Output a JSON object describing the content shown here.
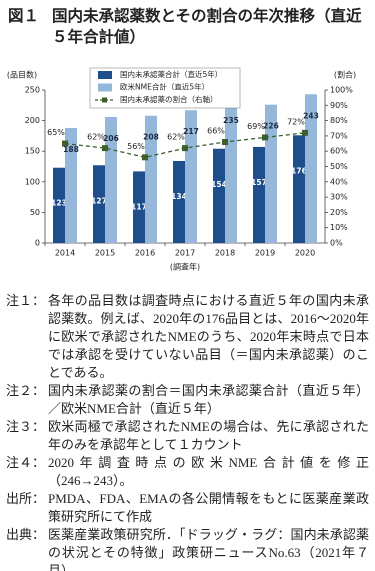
{
  "figure_label": "図１",
  "chart_data": {
    "type": "bar",
    "title": "国内未承認薬数とその割合の年次推移（直近５年合計値）",
    "y_axis_label": "(品目数)",
    "y2_axis_label": "(割合)",
    "x_axis_label": "(調査年)",
    "categories": [
      "2014",
      "2015",
      "2016",
      "2017",
      "2018",
      "2019",
      "2020"
    ],
    "series": [
      {
        "name": "国内未承認薬合計（直近5年）",
        "color": "#1f4e8c",
        "values": [
          123,
          127,
          117,
          134,
          154,
          157,
          176
        ]
      },
      {
        "name": "欧米NME合計（直近5年）",
        "color": "#95b8da",
        "values": [
          188,
          206,
          208,
          217,
          235,
          226,
          243
        ]
      },
      {
        "name": "国内未承認薬の割合（右軸）",
        "type": "line",
        "axis": "y2",
        "color": "#3d5f2a",
        "values": [
          65,
          62,
          56,
          62,
          66,
          69,
          72
        ],
        "value_labels": [
          "65%",
          "62%",
          "56%",
          "62%",
          "66%",
          "69%",
          "72%"
        ]
      }
    ],
    "ylim": [
      0,
      250
    ],
    "yticks": [
      0,
      50,
      100,
      150,
      200,
      250
    ],
    "y2lim": [
      0,
      100
    ],
    "y2ticks": [
      {
        "value": 0,
        "label": "0%"
      },
      {
        "value": 10,
        "label": "10%"
      },
      {
        "value": 20,
        "label": "20%"
      },
      {
        "value": 30,
        "label": "30%"
      },
      {
        "value": 40,
        "label": "40%"
      },
      {
        "value": 50,
        "label": "50%"
      },
      {
        "value": 60,
        "label": "60%"
      },
      {
        "value": 70,
        "label": "70%"
      },
      {
        "value": 80,
        "label": "80%"
      },
      {
        "value": 90,
        "label": "90%"
      },
      {
        "value": 100,
        "label": "100%"
      }
    ],
    "grid": false,
    "legend": "top-left"
  },
  "notes": [
    {
      "label": "注１：",
      "text": "各年の品目数は調査時点における直近５年の国内未承認薬数。例えば、2020年の176品目とは、2016～2020年に欧米で承認されたNMEのうち、2020年末時点で日本では承認を受けていない品目（＝国内未承認薬）のことである。"
    },
    {
      "label": "注２：",
      "text": "国内未承認薬の割合＝国内未承認薬合計（直近５年）／欧米NME合計（直近５年）"
    },
    {
      "label": "注３：",
      "text": "欧米両極で承認されたNMEの場合は、先に承認された年のみを承認年として１カウント"
    },
    {
      "label": "注４：",
      "text": "2020年調査時点の欧米NME合計値を修正（246→243）。"
    },
    {
      "label": "出所：",
      "text": "PMDA、FDA、EMAの各公開情報をもとに医薬産業政策研究所にて作成"
    },
    {
      "label": "出典：",
      "text": "医薬産業政策研究所．「ドラッグ・ラグ：国内未承認薬の状況とその特徴」政策研ニュースNo.63（2021年７月）"
    }
  ]
}
